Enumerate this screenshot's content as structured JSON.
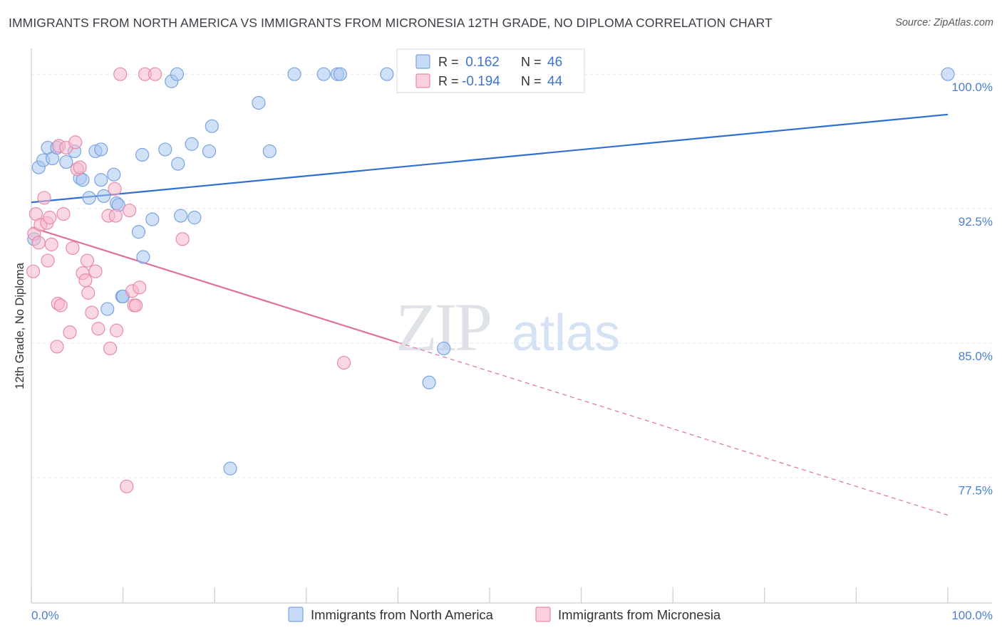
{
  "chart_data": {
    "type": "scatter",
    "title": "IMMIGRANTS FROM NORTH AMERICA VS IMMIGRANTS FROM MICRONESIA 12TH GRADE, NO DIPLOMA CORRELATION CHART",
    "source": "Source: ZipAtlas.com",
    "ylabel": "12th Grade, No Diploma",
    "xlabel": "",
    "xlim": [
      0,
      100
    ],
    "ylim": [
      70.5,
      101.0
    ],
    "x_tick_labels": {
      "min": "0.0%",
      "max": "100.0%"
    },
    "y_ticks": [
      {
        "value": 100.0,
        "label": "100.0%"
      },
      {
        "value": 92.5,
        "label": "92.5%"
      },
      {
        "value": 85.0,
        "label": "85.0%"
      },
      {
        "value": 77.5,
        "label": "77.5%"
      }
    ],
    "grid": true,
    "watermark": {
      "zip": "ZIP",
      "atlas": "atlas"
    },
    "legend": {
      "r_label": "R =",
      "n_label": "N =",
      "rows": [
        {
          "r": " 0.162",
          "n": "46",
          "color": "#a9c6f0"
        },
        {
          "r": "-0.194",
          "n": "44",
          "color": "#f5b8cc"
        }
      ]
    },
    "series": [
      {
        "name": "Immigrants from North America",
        "color": "#a9c6f0",
        "stroke": "#7aa3e0",
        "trend": {
          "x0": 0,
          "y0": 92.85,
          "x1": 100,
          "y1": 97.75,
          "color": "#2f6fd0",
          "dashed_from": null
        },
        "points": [
          [
            0.3,
            90.8
          ],
          [
            0.8,
            94.8
          ],
          [
            1.3,
            95.2
          ],
          [
            1.8,
            95.9
          ],
          [
            2.3,
            95.3
          ],
          [
            2.8,
            95.9
          ],
          [
            3.8,
            95.1
          ],
          [
            4.7,
            95.7
          ],
          [
            5.3,
            94.2
          ],
          [
            6.3,
            93.1
          ],
          [
            5.6,
            94.1
          ],
          [
            7.0,
            95.7
          ],
          [
            7.6,
            95.8
          ],
          [
            7.6,
            94.1
          ],
          [
            7.9,
            93.2
          ],
          [
            8.3,
            86.9
          ],
          [
            9.0,
            94.4
          ],
          [
            9.3,
            92.8
          ],
          [
            9.5,
            92.7
          ],
          [
            9.9,
            87.6
          ],
          [
            10.0,
            87.6
          ],
          [
            11.7,
            91.2
          ],
          [
            12.1,
            95.5
          ],
          [
            12.2,
            89.8
          ],
          [
            13.2,
            91.9
          ],
          [
            14.6,
            95.8
          ],
          [
            15.3,
            99.6
          ],
          [
            15.9,
            100.0
          ],
          [
            16.0,
            95.0
          ],
          [
            16.3,
            92.1
          ],
          [
            17.5,
            96.1
          ],
          [
            17.8,
            92.0
          ],
          [
            19.4,
            95.7
          ],
          [
            19.7,
            97.1
          ],
          [
            21.7,
            78.0
          ],
          [
            24.8,
            98.4
          ],
          [
            26.0,
            95.7
          ],
          [
            28.7,
            100.0
          ],
          [
            31.9,
            100.0
          ],
          [
            33.4,
            100.0
          ],
          [
            33.7,
            100.0
          ],
          [
            38.8,
            100.0
          ],
          [
            42.1,
            100.0
          ],
          [
            43.4,
            82.8
          ],
          [
            45.0,
            84.7
          ],
          [
            100.0,
            100.0
          ]
        ]
      },
      {
        "name": "Immigrants from Micronesia",
        "color": "#f5b8cc",
        "stroke": "#e88aab",
        "trend": {
          "x0": 0,
          "y0": 91.45,
          "x1": 100,
          "y1": 75.4,
          "color": "#e0709a",
          "dashed_from": 40
        },
        "points": [
          [
            0.2,
            89.0
          ],
          [
            0.3,
            91.1
          ],
          [
            0.5,
            92.2
          ],
          [
            0.8,
            90.6
          ],
          [
            1.0,
            91.6
          ],
          [
            1.4,
            93.1
          ],
          [
            1.7,
            91.7
          ],
          [
            1.8,
            89.6
          ],
          [
            2.0,
            92.0
          ],
          [
            2.2,
            90.5
          ],
          [
            2.8,
            84.8
          ],
          [
            2.9,
            87.2
          ],
          [
            3.0,
            96.0
          ],
          [
            3.2,
            87.1
          ],
          [
            3.5,
            92.2
          ],
          [
            3.8,
            95.9
          ],
          [
            4.2,
            85.6
          ],
          [
            4.5,
            90.3
          ],
          [
            4.8,
            96.2
          ],
          [
            5.0,
            94.7
          ],
          [
            5.3,
            94.8
          ],
          [
            5.6,
            88.9
          ],
          [
            5.9,
            88.5
          ],
          [
            6.1,
            89.6
          ],
          [
            6.2,
            87.8
          ],
          [
            6.6,
            86.7
          ],
          [
            7.0,
            89.0
          ],
          [
            7.3,
            85.8
          ],
          [
            8.4,
            92.1
          ],
          [
            8.6,
            84.7
          ],
          [
            9.1,
            93.6
          ],
          [
            9.2,
            92.1
          ],
          [
            9.3,
            85.7
          ],
          [
            9.7,
            100.0
          ],
          [
            10.4,
            77.0
          ],
          [
            10.7,
            92.4
          ],
          [
            11.0,
            87.9
          ],
          [
            11.2,
            87.1
          ],
          [
            11.4,
            87.1
          ],
          [
            11.8,
            88.1
          ],
          [
            12.4,
            100.0
          ],
          [
            13.5,
            100.0
          ],
          [
            16.5,
            90.8
          ],
          [
            34.1,
            83.9
          ]
        ]
      }
    ]
  }
}
